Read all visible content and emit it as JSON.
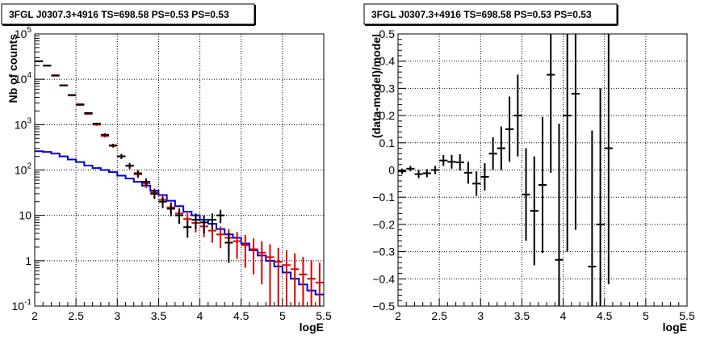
{
  "chart_data": [
    {
      "type": "scatter",
      "title": "3FGL J0307.3+4916 TS=698.58 PS=0.53 PS=0.53",
      "xlabel": "logE",
      "ylabel": "Nb of counts",
      "xlim": [
        2,
        5.5
      ],
      "ylim": [
        0.1,
        100000
      ],
      "y_scale": "log",
      "grid": true,
      "x_ticks": [
        "2",
        "2.5",
        "3",
        "3.5",
        "4",
        "4.5",
        "5",
        "5.5"
      ],
      "y_ticks": [
        {
          "base": "10",
          "exp": "-1",
          "value": 0.1
        },
        {
          "base": "1",
          "exp": "",
          "value": 1
        },
        {
          "base": "10",
          "exp": "",
          "value": 10
        },
        {
          "base": "10",
          "exp": "2",
          "value": 100
        },
        {
          "base": "10",
          "exp": "3",
          "value": 1000
        },
        {
          "base": "10",
          "exp": "4",
          "value": 10000
        },
        {
          "base": "10",
          "exp": "5",
          "value": 100000
        }
      ],
      "colors": {
        "data": "#000000",
        "model": "#dd0000",
        "background": "#0000dd"
      },
      "x": [
        2.05,
        2.15,
        2.25,
        2.35,
        2.45,
        2.55,
        2.65,
        2.75,
        2.85,
        2.95,
        3.05,
        3.15,
        3.25,
        3.35,
        3.45,
        3.55,
        3.65,
        3.75,
        3.85,
        3.95,
        4.05,
        4.15,
        4.25,
        4.35,
        4.45,
        4.55,
        4.65,
        4.75,
        4.85,
        4.95,
        5.05,
        5.15,
        5.25,
        5.35,
        5.45
      ],
      "series": [
        {
          "name": "data",
          "x": [
            2.05,
            2.15,
            2.25,
            2.35,
            2.45,
            2.55,
            2.65,
            2.75,
            2.85,
            2.95,
            3.05,
            3.15,
            3.25,
            3.35,
            3.45,
            3.55,
            3.65,
            3.75,
            3.85,
            3.95,
            4.05,
            4.15,
            4.25,
            4.35
          ],
          "values": [
            25000,
            20000,
            12000,
            7300,
            4500,
            2800,
            1800,
            1050,
            600,
            350,
            200,
            125,
            85,
            55,
            30,
            20,
            14,
            10,
            5.5,
            8,
            7,
            8,
            10,
            2.5
          ],
          "err": [
            300,
            250,
            200,
            150,
            120,
            90,
            70,
            55,
            40,
            30,
            25,
            18,
            14,
            10,
            7,
            5.5,
            4.5,
            3.5,
            2.3,
            3,
            3,
            3,
            3.3,
            1.6
          ]
        },
        {
          "name": "model",
          "x": [
            2.05,
            2.15,
            2.25,
            2.35,
            2.45,
            2.55,
            2.65,
            2.75,
            2.85,
            2.95,
            3.05,
            3.15,
            3.25,
            3.35,
            3.45,
            3.55,
            3.65,
            3.75,
            3.85,
            3.95,
            4.05,
            4.15,
            4.25,
            4.35,
            4.45,
            4.55,
            4.65,
            4.75,
            4.85,
            4.95,
            5.05,
            5.15,
            5.25,
            5.35,
            5.45
          ],
          "values": [
            25000,
            20000,
            12300,
            7400,
            4400,
            2700,
            1720,
            1000,
            560,
            340,
            200,
            123,
            80,
            50,
            32,
            22,
            15,
            11,
            8.3,
            6.8,
            5.7,
            4.6,
            3.8,
            3.2,
            2.7,
            2.2,
            1.8,
            1.5,
            1.2,
            0.95,
            0.8,
            0.65,
            0.5,
            0.4,
            0.33
          ],
          "err": [
            300,
            250,
            200,
            150,
            120,
            90,
            70,
            55,
            40,
            30,
            25,
            18,
            14,
            10,
            7,
            5.5,
            4.5,
            3.5,
            2.9,
            2.6,
            2.4,
            2.1,
            1.9,
            1.8,
            1.6,
            1.5,
            1.3,
            1.2,
            1.1,
            0.98,
            0.9,
            0.81,
            0.71,
            0.63,
            0.57
          ]
        },
        {
          "name": "background",
          "edges": [
            2.0,
            2.1,
            2.2,
            2.3,
            2.4,
            2.5,
            2.6,
            2.7,
            2.8,
            2.9,
            3.0,
            3.1,
            3.2,
            3.3,
            3.4,
            3.5,
            3.6,
            3.7,
            3.8,
            3.9,
            4.0,
            4.1,
            4.2,
            4.3,
            4.4,
            4.5,
            4.6,
            4.7,
            4.8,
            4.9,
            5.0,
            5.1,
            5.2,
            5.3,
            5.4,
            5.5
          ],
          "values": [
            260,
            250,
            230,
            200,
            170,
            150,
            125,
            110,
            100,
            90,
            75,
            65,
            55,
            45,
            35,
            28,
            21,
            16,
            12,
            10,
            8,
            6.5,
            5,
            3.8,
            3.2,
            2.4,
            1.7,
            1.3,
            1.0,
            0.75,
            0.55,
            0.4,
            0.3,
            0.22,
            0.18
          ]
        }
      ]
    },
    {
      "type": "scatter",
      "title": "3FGL J0307.3+4916 TS=698.58 PS=0.53 PS=0.53",
      "xlabel": "logE",
      "ylabel": "(data-model)/model",
      "xlim": [
        2,
        5.5
      ],
      "ylim": [
        -0.5,
        0.5
      ],
      "grid": true,
      "x_ticks": [
        "2",
        "2.5",
        "3",
        "3.5",
        "4",
        "4.5",
        "5",
        "5.5"
      ],
      "y_ticks": [
        "-0.5",
        "-0.4",
        "-0.3",
        "-0.2",
        "-0.1",
        "0",
        "0.1",
        "0.2",
        "0.3",
        "0.4",
        "0.5"
      ],
      "series": [
        {
          "name": "residual",
          "x": [
            2.05,
            2.15,
            2.25,
            2.35,
            2.45,
            2.55,
            2.65,
            2.75,
            2.85,
            2.95,
            3.05,
            3.15,
            3.25,
            3.35,
            3.45,
            3.55,
            3.65,
            3.75,
            3.85,
            3.95,
            4.05,
            4.15,
            4.35,
            4.45,
            4.55
          ],
          "values": [
            -0.005,
            0.005,
            -0.015,
            -0.012,
            0.0,
            0.035,
            0.03,
            0.028,
            -0.01,
            -0.05,
            -0.025,
            0.06,
            0.08,
            0.15,
            0.2,
            -0.09,
            -0.15,
            -0.055,
            0.35,
            -0.33,
            0.2,
            0.28,
            -0.355,
            -0.2,
            0.08
          ],
          "err": [
            0.01,
            0.01,
            0.015,
            0.015,
            0.015,
            0.02,
            0.025,
            0.03,
            0.04,
            0.045,
            0.05,
            0.06,
            0.08,
            0.12,
            0.15,
            0.17,
            0.2,
            0.25,
            0.36,
            0.5,
            0.5,
            0.5,
            0.5,
            0.5,
            0.5
          ]
        }
      ]
    }
  ]
}
